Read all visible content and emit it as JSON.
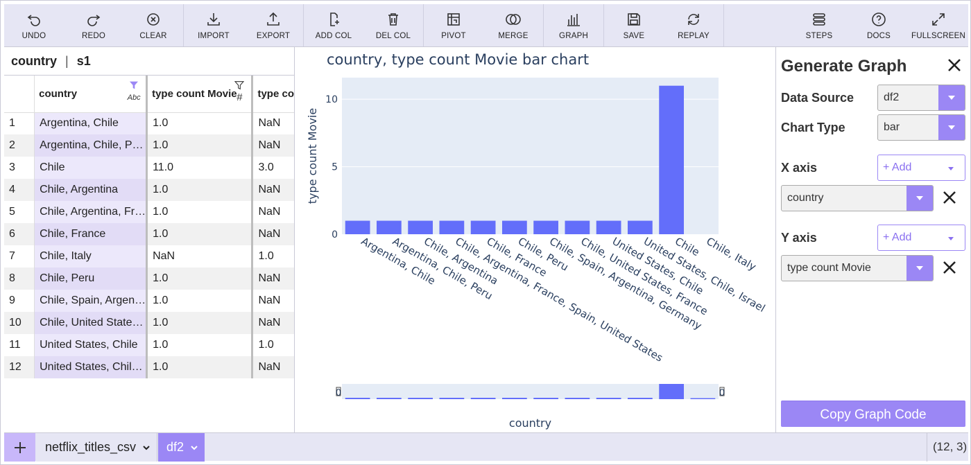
{
  "toolbar": {
    "groups": [
      [
        {
          "id": "undo",
          "label": "UNDO"
        },
        {
          "id": "redo",
          "label": "REDO"
        },
        {
          "id": "clear",
          "label": "CLEAR"
        }
      ],
      [
        {
          "id": "import",
          "label": "IMPORT"
        },
        {
          "id": "export",
          "label": "EXPORT"
        }
      ],
      [
        {
          "id": "add-col",
          "label": "ADD COL"
        },
        {
          "id": "del-col",
          "label": "DEL COL"
        }
      ],
      [
        {
          "id": "pivot",
          "label": "PIVOT"
        },
        {
          "id": "merge",
          "label": "MERGE"
        }
      ],
      [
        {
          "id": "graph",
          "label": "GRAPH"
        }
      ],
      [
        {
          "id": "save",
          "label": "SAVE"
        },
        {
          "id": "replay",
          "label": "REPLAY"
        }
      ]
    ],
    "right_group": [
      {
        "id": "steps",
        "label": "STEPS"
      },
      {
        "id": "docs",
        "label": "DOCS"
      },
      {
        "id": "fullscreen",
        "label": "FULLSCREEN"
      }
    ]
  },
  "sheet_header": {
    "column": "country",
    "separator": "|",
    "sheet": "s1"
  },
  "grid": {
    "columns": [
      {
        "label": "country",
        "type_label": "Abc",
        "filter_icon": "filter-active-icon"
      },
      {
        "label": "type count Movie",
        "type_label": "#",
        "filter_icon": "filter-icon"
      },
      {
        "label": "type co"
      }
    ],
    "rows": [
      {
        "idx": "1",
        "country": "Argentina, Chile",
        "movie": "1.0",
        "tv": "NaN"
      },
      {
        "idx": "2",
        "country": "Argentina, Chile, P…",
        "movie": "1.0",
        "tv": "NaN"
      },
      {
        "idx": "3",
        "country": "Chile",
        "movie": "11.0",
        "tv": "3.0"
      },
      {
        "idx": "4",
        "country": "Chile, Argentina",
        "movie": "1.0",
        "tv": "NaN"
      },
      {
        "idx": "5",
        "country": "Chile, Argentina, Fr…",
        "movie": "1.0",
        "tv": "NaN"
      },
      {
        "idx": "6",
        "country": "Chile, France",
        "movie": "1.0",
        "tv": "NaN"
      },
      {
        "idx": "7",
        "country": "Chile, Italy",
        "movie": "NaN",
        "tv": "1.0"
      },
      {
        "idx": "8",
        "country": "Chile, Peru",
        "movie": "1.0",
        "tv": "NaN"
      },
      {
        "idx": "9",
        "country": "Chile, Spain, Argen…",
        "movie": "1.0",
        "tv": "NaN"
      },
      {
        "idx": "10",
        "country": "Chile, United State…",
        "movie": "1.0",
        "tv": "NaN"
      },
      {
        "idx": "11",
        "country": "United States, Chile",
        "movie": "1.0",
        "tv": "1.0"
      },
      {
        "idx": "12",
        "country": "United States, Chil…",
        "movie": "1.0",
        "tv": "NaN"
      }
    ]
  },
  "chart_data": {
    "type": "bar",
    "title": "country, type count Movie bar chart",
    "xlabel": "country",
    "ylabel": "type count Movie",
    "categories": [
      "Argentina, Chile",
      "Argentina, Chile, Peru",
      "Chile, Argentina",
      "Chile, Argentina, France, Spain, United States",
      "Chile, France",
      "Chile, Peru",
      "Chile, Spain, Argentina, Germany",
      "Chile, United States, France",
      "United States, Chile",
      "United States, Chile, Israel",
      "Chile",
      "Chile, Italy"
    ],
    "values": [
      1,
      1,
      1,
      1,
      1,
      1,
      1,
      1,
      1,
      1,
      11,
      0
    ],
    "ylim": [
      0,
      11.6
    ],
    "yticks": [
      0,
      5,
      10
    ],
    "grid": true,
    "legend": "none",
    "range_slider": {
      "visible": true,
      "left_label": "0",
      "right_label": "0"
    },
    "colors": {
      "bar": "#636efa",
      "plot_bg": "#e5ecf6",
      "text": "#2a3f5f"
    }
  },
  "panel": {
    "title": "Generate Graph",
    "data_source_label": "Data Source",
    "data_source_value": "df2",
    "chart_type_label": "Chart Type",
    "chart_type_value": "bar",
    "x_axis_label": "X axis",
    "x_add": "+ Add",
    "x_value": "country",
    "y_axis_label": "Y axis",
    "y_add": "+ Add",
    "y_value": "type count Movie",
    "copy_button": "Copy Graph Code"
  },
  "bottombar": {
    "add_icon": "plus-icon",
    "tabs": [
      {
        "label": "netflix_titles_csv"
      },
      {
        "label": "df2"
      }
    ],
    "dims": "(12, 3)"
  },
  "colors": {
    "accent": "#9b87f5",
    "toolbar_bg": "#e6e6f4"
  }
}
